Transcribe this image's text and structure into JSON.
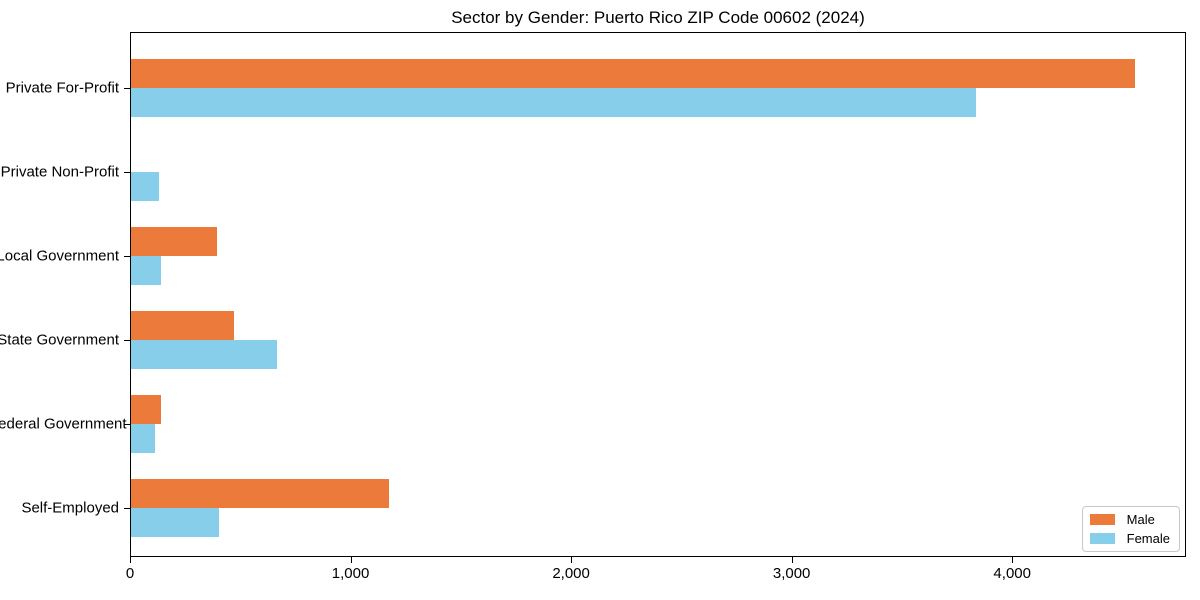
{
  "chart_data": {
    "type": "bar",
    "orientation": "horizontal",
    "title": "Sector by Gender: Puerto Rico ZIP Code 00602 (2024)",
    "categories": [
      "Private For-Profit",
      "Private Non-Profit",
      "Local Government",
      "State Government",
      "Federal Government",
      "Self-Employed"
    ],
    "series": [
      {
        "name": "Male",
        "color": "#ec7a3a",
        "values": [
          4560,
          0,
          390,
          470,
          135,
          1170
        ]
      },
      {
        "name": "Female",
        "color": "#87ceeb",
        "values": [
          3840,
          125,
          135,
          665,
          110,
          400
        ]
      }
    ],
    "xlabel": "",
    "ylabel": "",
    "xlim": [
      0,
      4788
    ],
    "xticks": {
      "values": [
        0,
        1000,
        2000,
        3000,
        4000
      ],
      "labels": [
        "0",
        "1,000",
        "2,000",
        "3,000",
        "4,000"
      ]
    },
    "grid": false,
    "legend": {
      "position": "lower right",
      "labels": [
        "Male",
        "Female"
      ]
    }
  },
  "figure": {
    "background": "#ffffff",
    "spine_color": "#000000",
    "legend_border_color": "#c8c8c8"
  }
}
